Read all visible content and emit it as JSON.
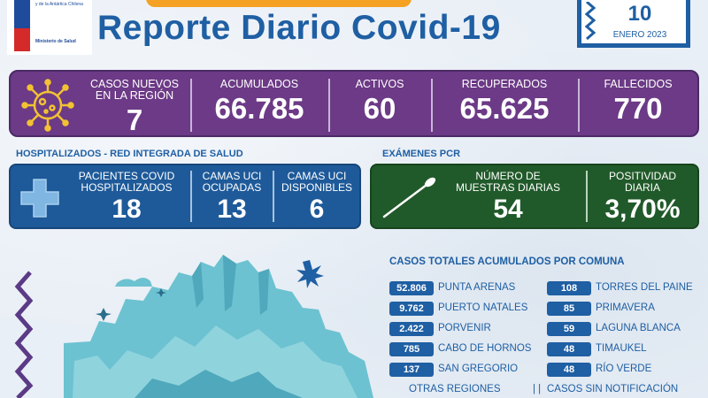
{
  "header": {
    "ministry_line1": "y de la Antártica Chilena",
    "ministry_line2": "Ministerio de Salud",
    "title": "Reporte Diario Covid-19",
    "date_day": "10",
    "date_month": "ENERO 2023"
  },
  "stats": [
    {
      "label_line1": "CASOS NUEVOS",
      "label_line2": "EN LA REGIÓN",
      "value": "7"
    },
    {
      "label_line1": "ACUMULADOS",
      "label_line2": "",
      "value": "66.785"
    },
    {
      "label_line1": "ACTIVOS",
      "label_line2": "",
      "value": "60"
    },
    {
      "label_line1": "RECUPERADOS",
      "label_line2": "",
      "value": "65.625"
    },
    {
      "label_line1": "FALLECIDOS",
      "label_line2": "",
      "value": "770"
    }
  ],
  "hospital": {
    "section_label": "HOSPITALIZADOS - RED INTEGRADA DE SALUD",
    "cells": [
      {
        "label_line1": "PACIENTES COVID",
        "label_line2": "HOSPITALIZADOS",
        "value": "18"
      },
      {
        "label_line1": "CAMAS UCI",
        "label_line2": "OCUPADAS",
        "value": "13"
      },
      {
        "label_line1": "CAMAS UCI",
        "label_line2": "DISPONIBLES",
        "value": "6"
      }
    ]
  },
  "pcr": {
    "section_label": "EXÁMENES PCR",
    "cells": [
      {
        "label_line1": "NÚMERO DE",
        "label_line2": "MUESTRAS DIARIAS",
        "value": "54"
      },
      {
        "label_line1": "POSITIVIDAD",
        "label_line2": "DIARIA",
        "value": "3,70%"
      }
    ]
  },
  "comunas": {
    "title": "CASOS TOTALES ACUMULADOS POR COMUNA",
    "left": [
      {
        "value": "52.806",
        "name": "PUNTA ARENAS"
      },
      {
        "value": "9.762",
        "name": "PUERTO NATALES"
      },
      {
        "value": "2.422",
        "name": "PORVENIR"
      },
      {
        "value": "785",
        "name": "CABO DE HORNOS"
      },
      {
        "value": "137",
        "name": "SAN GREGORIO"
      }
    ],
    "right": [
      {
        "value": "108",
        "name": "TORRES DEL PAINE"
      },
      {
        "value": "85",
        "name": "PRIMAVERA"
      },
      {
        "value": "59",
        "name": "LAGUNA BLANCA"
      },
      {
        "value": "48",
        "name": "TIMAUKEL"
      },
      {
        "value": "48",
        "name": "RÍO VERDE"
      }
    ],
    "footer_left": "OTRAS REGIONES",
    "footer_sep": "| |",
    "footer_right": "CASOS SIN NOTIFICACIÓN"
  },
  "colors": {
    "title_blue": "#1f5fa3",
    "purple": "#6c3a86",
    "hospital_blue": "#1e5a99",
    "pcr_green": "#215a2a",
    "orange": "#f4a124",
    "yellow_virus": "#f2c233",
    "landscape": "#67bfd0"
  },
  "icons": [
    "virus-icon",
    "medical-cross-icon",
    "swab-icon",
    "mountain-landscape"
  ]
}
